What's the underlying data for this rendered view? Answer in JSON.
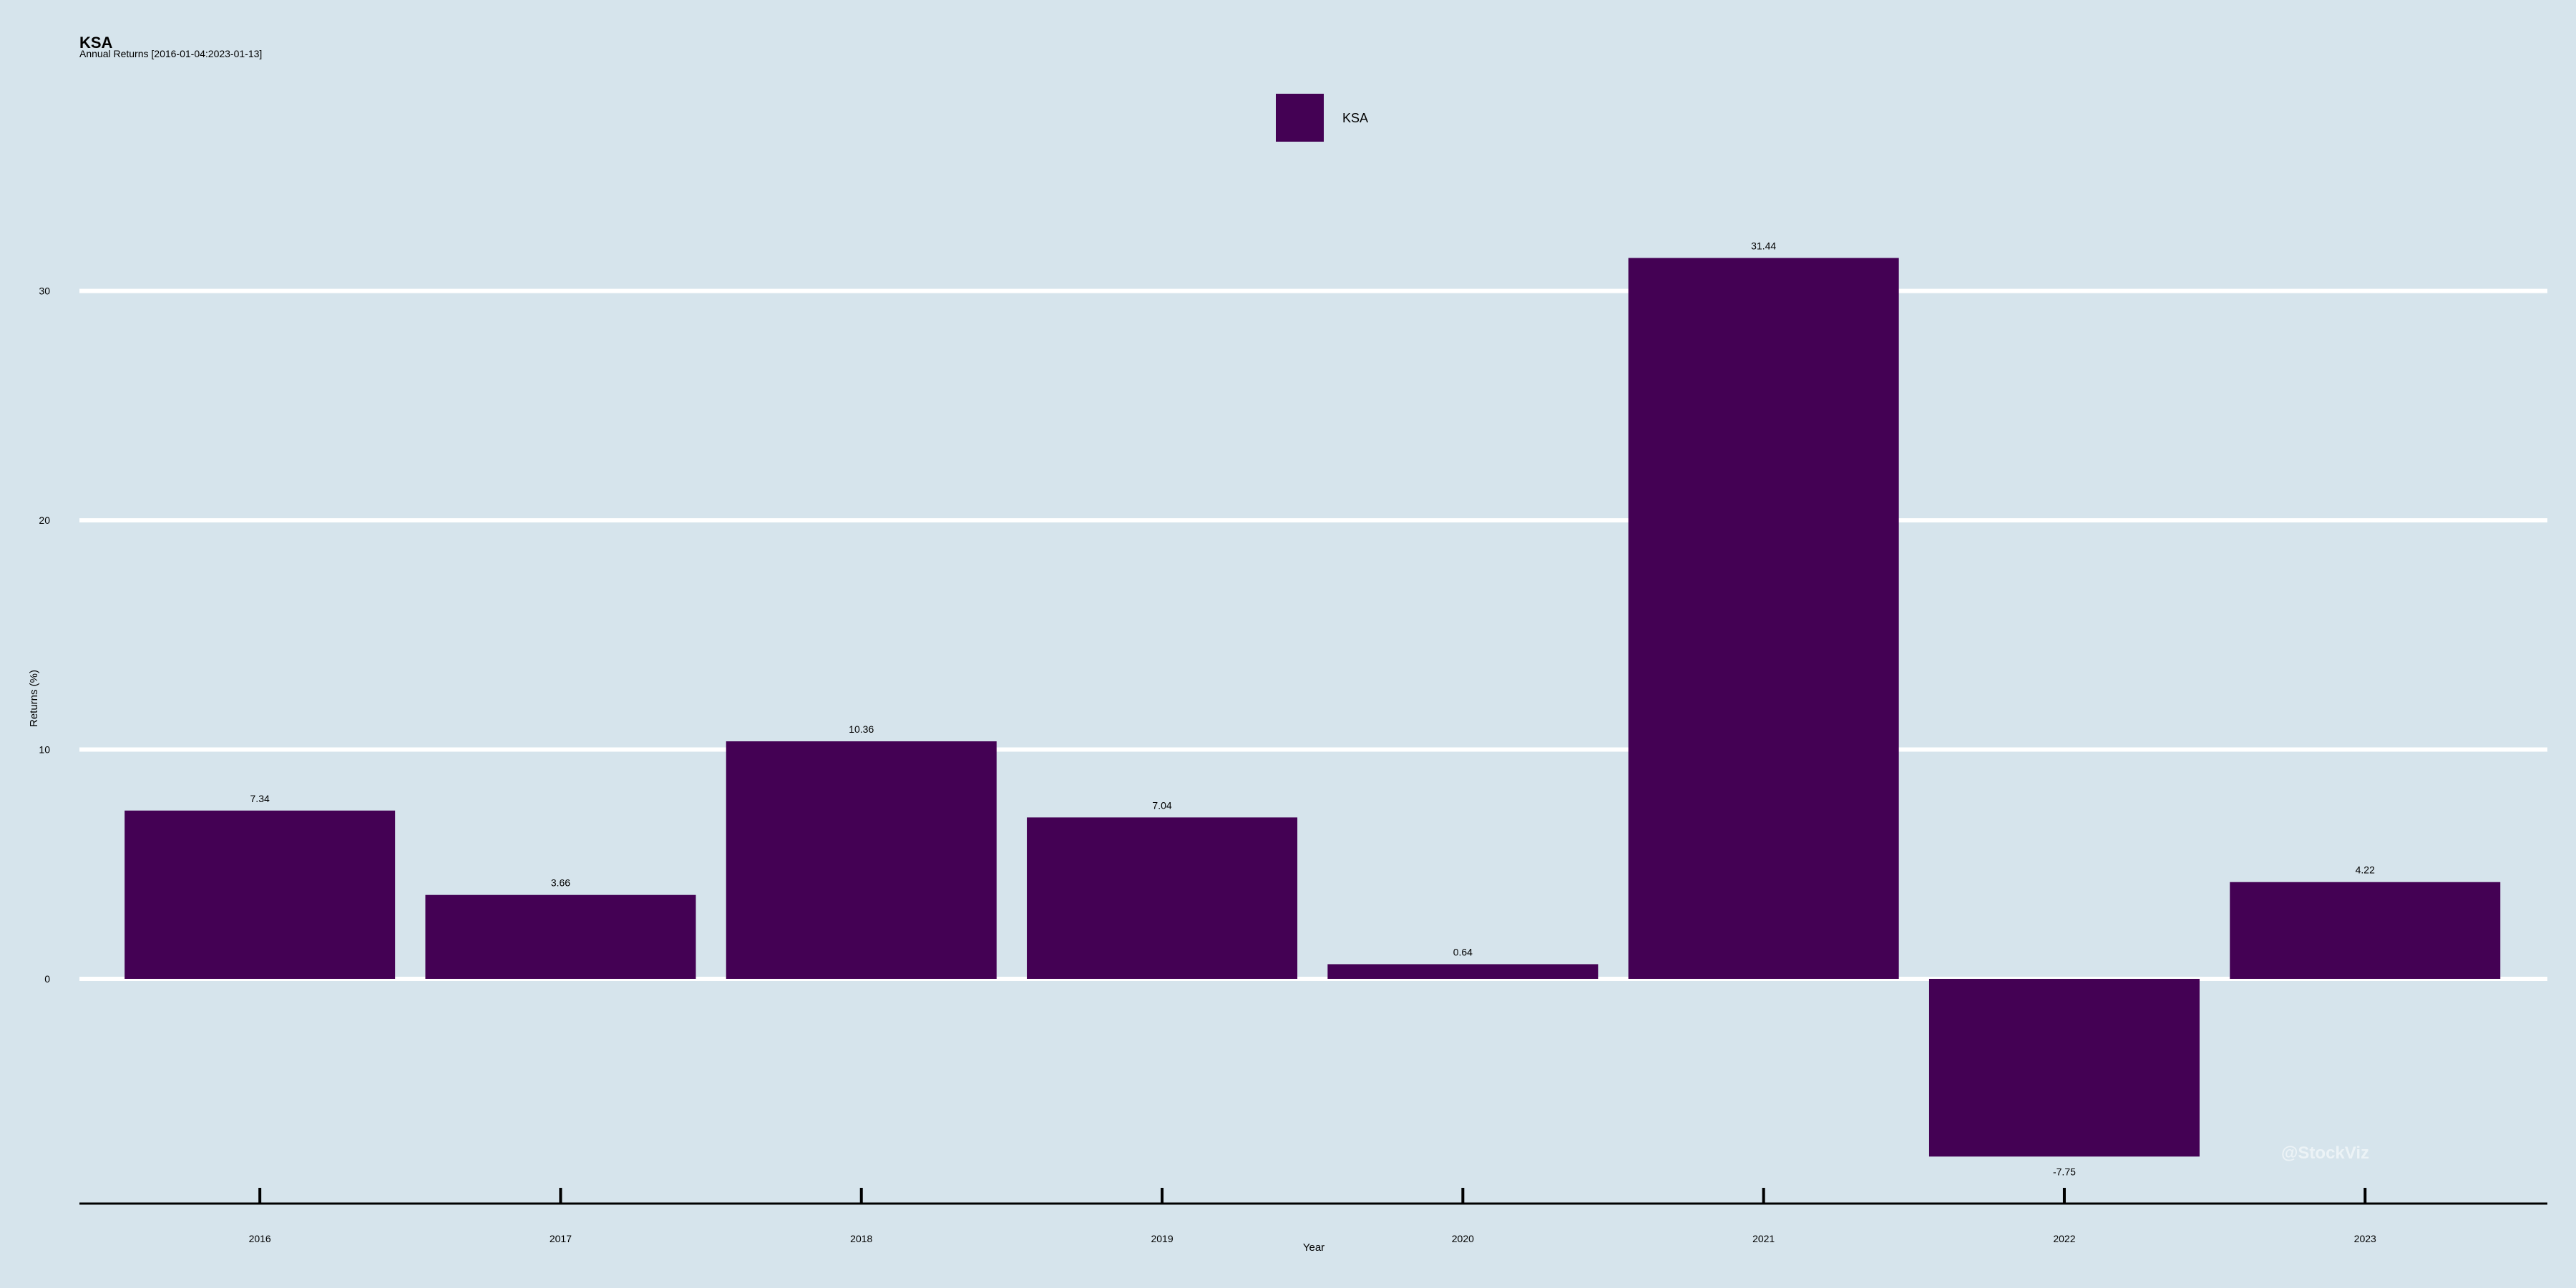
{
  "chart_data": {
    "type": "bar",
    "title": "KSA",
    "subtitle": "Annual Returns [2016-01-04:2023-01-13]",
    "xlabel": "Year",
    "ylabel": "Returns (%)",
    "categories": [
      "2016",
      "2017",
      "2018",
      "2019",
      "2020",
      "2021",
      "2022",
      "2023"
    ],
    "series": [
      {
        "name": "KSA",
        "values": [
          7.34,
          3.66,
          10.36,
          7.04,
          0.64,
          31.44,
          -7.75,
          4.22
        ],
        "value_labels": [
          "7.34",
          "3.66",
          "10.36",
          "7.04",
          "0.64",
          "31.44",
          "-7.75",
          "4.22"
        ]
      }
    ],
    "ylim": [
      -9.8,
      40.6
    ],
    "yticks": [
      0,
      10,
      20,
      30
    ],
    "grid": true,
    "legend_position": "top-center",
    "colors": {
      "background": "#d6e4ec",
      "bar": "#440154",
      "grid": "#ffffff",
      "axis": "#000000"
    },
    "watermark": "@StockViz"
  }
}
